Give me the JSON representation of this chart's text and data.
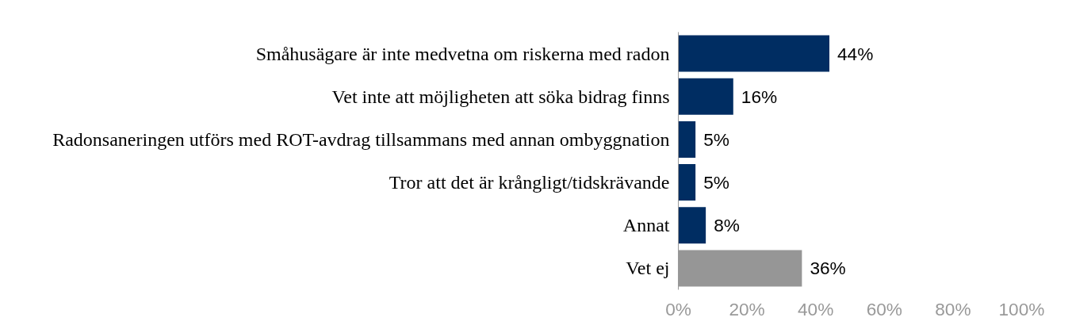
{
  "chart_data": {
    "type": "bar",
    "orientation": "horizontal",
    "categories": [
      "Småhusägare är inte medvetna om riskerna med radon",
      "Vet inte att möjligheten att söka bidrag finns",
      "Radonsaneringen utförs med ROT-avdrag tillsammans med annan ombyggnation",
      "Tror att det är krångligt/tidskrävande",
      "Annat",
      "Vet ej"
    ],
    "values": [
      44,
      16,
      5,
      5,
      8,
      36
    ],
    "colors": [
      "#002d62",
      "#002d62",
      "#002d62",
      "#002d62",
      "#002d62",
      "#969696"
    ],
    "data_labels": true,
    "value_labels": [
      "44%",
      "16%",
      "5%",
      "5%",
      "8%",
      "36%"
    ],
    "xlim": [
      0,
      100
    ],
    "xticks": [
      {
        "value": 0,
        "label": "0%"
      },
      {
        "value": 20,
        "label": "20%"
      },
      {
        "value": 40,
        "label": "40%"
      },
      {
        "value": 60,
        "label": "60%"
      },
      {
        "value": 80,
        "label": "80%"
      },
      {
        "value": 100,
        "label": "100%"
      }
    ],
    "grid": false
  }
}
